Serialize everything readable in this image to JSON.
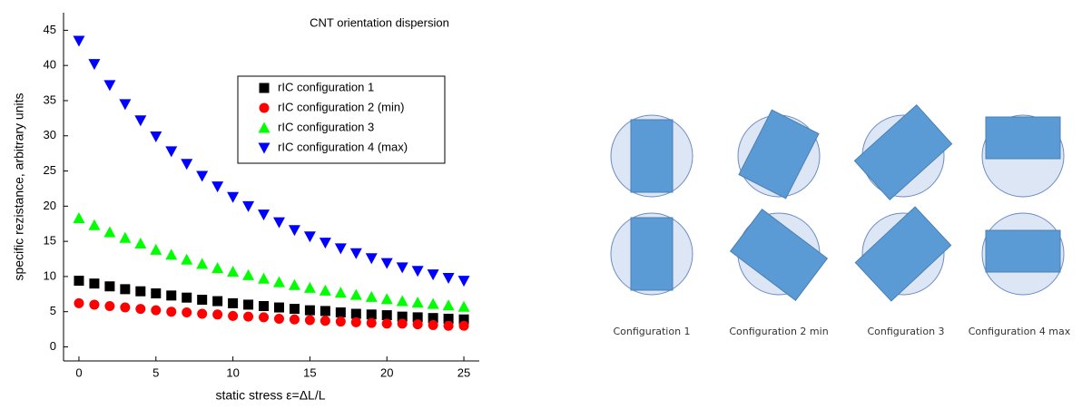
{
  "chart_data": {
    "type": "scatter",
    "title": "CNT orientation dispersion",
    "x_label": "static stress ε=ΔL/L",
    "y_label": "specific rezistance, arbitrary units",
    "x": [
      0,
      1,
      2,
      3,
      4,
      5,
      6,
      7,
      8,
      9,
      10,
      11,
      12,
      13,
      14,
      15,
      16,
      17,
      18,
      19,
      20,
      21,
      22,
      23,
      24,
      25
    ],
    "xlim": [
      -1,
      26
    ],
    "xticks": [
      0,
      5,
      10,
      15,
      20,
      25
    ],
    "ylim": [
      -2,
      47.5
    ],
    "yticks": [
      0,
      5,
      10,
      15,
      20,
      25,
      30,
      35,
      40,
      45
    ],
    "series": [
      {
        "name": "rIC configuration 1",
        "color": "#000000",
        "marker": "square",
        "values": [
          9.4,
          9.0,
          8.6,
          8.2,
          7.9,
          7.6,
          7.3,
          7.0,
          6.7,
          6.5,
          6.2,
          6.0,
          5.8,
          5.6,
          5.4,
          5.2,
          5.1,
          4.9,
          4.7,
          4.6,
          4.5,
          4.3,
          4.2,
          4.1,
          4.0,
          3.9
        ]
      },
      {
        "name": "rIC configuration 2 (min)",
        "color": "#ff0000",
        "marker": "circle",
        "values": [
          6.2,
          6.0,
          5.8,
          5.6,
          5.4,
          5.2,
          5.0,
          4.9,
          4.7,
          4.6,
          4.4,
          4.3,
          4.2,
          4.0,
          3.9,
          3.8,
          3.7,
          3.6,
          3.5,
          3.4,
          3.3,
          3.3,
          3.2,
          3.1,
          3.0,
          3.0
        ]
      },
      {
        "name": "rIC configuration 3",
        "color": "#00ff00",
        "marker": "triangle-up",
        "values": [
          18.3,
          17.3,
          16.3,
          15.5,
          14.7,
          13.8,
          13.1,
          12.4,
          11.8,
          11.2,
          10.7,
          10.2,
          9.7,
          9.2,
          8.8,
          8.4,
          8.0,
          7.7,
          7.4,
          7.1,
          6.8,
          6.5,
          6.3,
          6.1,
          5.9,
          5.7
        ]
      },
      {
        "name": "rIC configuration 4 (max)",
        "color": "#0000ff",
        "marker": "triangle-down",
        "values": [
          43.5,
          40.2,
          37.2,
          34.5,
          32.2,
          29.9,
          27.8,
          26.0,
          24.3,
          22.8,
          21.3,
          20.0,
          18.8,
          17.7,
          16.6,
          15.7,
          14.8,
          14.0,
          13.3,
          12.6,
          11.9,
          11.3,
          10.8,
          10.3,
          9.8,
          9.4
        ]
      }
    ]
  },
  "diagram": {
    "labels": [
      "Configuration 1",
      "Configuration 2 min",
      "Configuration 3",
      "Configuration 4 max"
    ]
  }
}
